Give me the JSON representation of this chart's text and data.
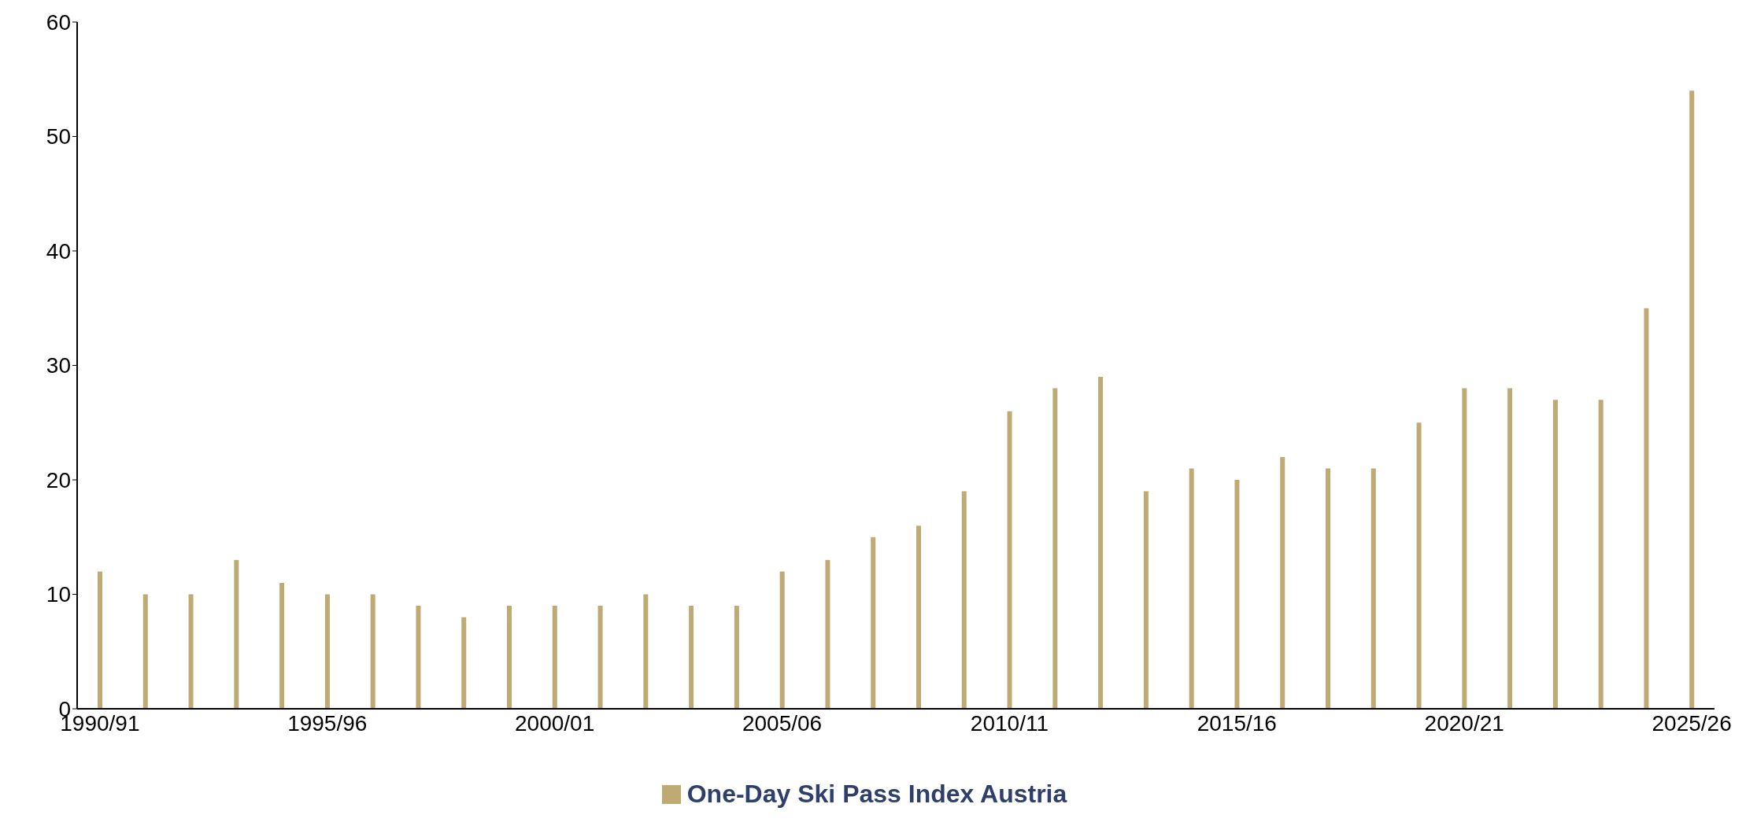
{
  "chart_data": {
    "type": "bar",
    "categories": [
      "1990/91",
      null,
      null,
      null,
      null,
      "1995/96",
      null,
      null,
      null,
      null,
      "2000/01",
      null,
      null,
      null,
      null,
      "2005/06",
      null,
      null,
      null,
      null,
      "2010/11",
      null,
      null,
      null,
      null,
      "2015/16",
      null,
      null,
      null,
      null,
      "2020/21",
      null,
      null,
      null,
      null,
      "2025/26"
    ],
    "series": [
      {
        "name": "One-Day Ski Pass Index Austria",
        "color": "#c0aa74",
        "values": [
          12,
          10,
          10,
          13,
          11,
          10,
          10,
          9,
          8,
          9,
          9,
          9,
          10,
          9,
          9,
          12,
          13,
          15,
          16,
          19,
          26,
          28,
          29,
          19,
          21,
          20,
          22,
          21,
          21,
          25,
          28,
          28,
          27,
          27,
          35,
          54
        ]
      }
    ],
    "ylim": [
      0,
      60
    ],
    "yticks": [
      0,
      10,
      20,
      30,
      40,
      50,
      60
    ],
    "grid": false,
    "legend": "bottom"
  }
}
